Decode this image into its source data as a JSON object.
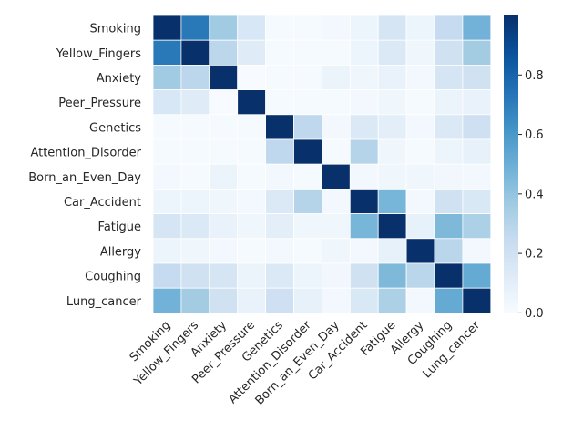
{
  "chart_data": {
    "type": "heatmap",
    "title": "",
    "xlabel": "",
    "ylabel": "",
    "labels": [
      "Smoking",
      "Yellow_Fingers",
      "Anxiety",
      "Peer_Pressure",
      "Genetics",
      "Attention_Disorder",
      "Born_an_Even_Day",
      "Car_Accident",
      "Fatigue",
      "Allergy",
      "Coughing",
      "Lung_cancer"
    ],
    "matrix": [
      [
        1.0,
        0.72,
        0.37,
        0.16,
        0.01,
        0.01,
        0.02,
        0.05,
        0.17,
        0.05,
        0.25,
        0.48
      ],
      [
        0.72,
        1.0,
        0.28,
        0.12,
        0.01,
        0.01,
        0.01,
        0.05,
        0.14,
        0.04,
        0.2,
        0.36
      ],
      [
        0.37,
        0.28,
        1.0,
        0.0,
        0.01,
        0.01,
        0.06,
        0.04,
        0.07,
        0.02,
        0.17,
        0.2
      ],
      [
        0.16,
        0.12,
        0.0,
        1.0,
        0.01,
        0.01,
        0.01,
        0.02,
        0.04,
        0.01,
        0.06,
        0.07
      ],
      [
        0.01,
        0.01,
        0.01,
        0.01,
        1.0,
        0.27,
        0.02,
        0.14,
        0.1,
        0.02,
        0.14,
        0.21
      ],
      [
        0.01,
        0.01,
        0.01,
        0.01,
        0.27,
        1.0,
        0.01,
        0.3,
        0.04,
        0.01,
        0.05,
        0.08
      ],
      [
        0.02,
        0.01,
        0.06,
        0.01,
        0.02,
        0.01,
        1.0,
        0.02,
        0.04,
        0.04,
        0.03,
        0.02
      ],
      [
        0.05,
        0.05,
        0.04,
        0.02,
        0.14,
        0.3,
        0.02,
        1.0,
        0.47,
        0.02,
        0.2,
        0.15
      ],
      [
        0.17,
        0.14,
        0.07,
        0.04,
        0.1,
        0.04,
        0.04,
        0.47,
        1.0,
        0.08,
        0.45,
        0.33
      ],
      [
        0.05,
        0.04,
        0.02,
        0.01,
        0.02,
        0.01,
        0.04,
        0.02,
        0.08,
        1.0,
        0.29,
        0.02
      ],
      [
        0.25,
        0.2,
        0.17,
        0.06,
        0.14,
        0.05,
        0.03,
        0.2,
        0.45,
        0.29,
        1.0,
        0.52
      ],
      [
        0.48,
        0.36,
        0.2,
        0.07,
        0.21,
        0.08,
        0.02,
        0.15,
        0.33,
        0.02,
        0.52,
        1.0
      ]
    ],
    "colorbar": {
      "ticks": [
        0.0,
        0.2,
        0.4,
        0.6,
        0.8
      ],
      "tick_labels": [
        "0.0",
        "0.2",
        "0.4",
        "0.6",
        "0.8"
      ],
      "range": [
        0.0,
        1.0
      ],
      "colormap": "Blues"
    },
    "colors": {
      "low": "#f7fbff",
      "high": "#08306b",
      "cell_border": "#ffffff"
    }
  }
}
